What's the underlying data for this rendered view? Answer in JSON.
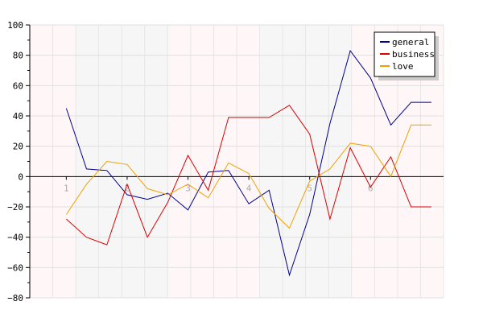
{
  "chart_data": {
    "type": "line",
    "title": "",
    "xlabel": "",
    "ylabel": "",
    "x": [
      1,
      1.333,
      1.667,
      2,
      2.333,
      2.667,
      3,
      3.333,
      3.667,
      4,
      4.333,
      4.667,
      5,
      5.333,
      5.667,
      6,
      6.333,
      6.667,
      7
    ],
    "x_tick_labels": [
      "1",
      "2",
      "3",
      "4",
      "5",
      "6"
    ],
    "x_tick_values": [
      1,
      2,
      3,
      4,
      5,
      6
    ],
    "xlim": [
      1,
      7
    ],
    "ylim": [
      -80,
      100
    ],
    "y_tick_values": [
      -80,
      -60,
      -40,
      -20,
      0,
      20,
      40,
      60,
      80,
      100
    ],
    "y_tick_labels": [
      "−80",
      "−60",
      "−40",
      "−20",
      "0",
      "20",
      "40",
      "60",
      "80",
      "100"
    ],
    "grid": true,
    "legend_position": "top-right",
    "series": [
      {
        "name": "general",
        "color": "#00008b",
        "values": [
          45,
          5,
          4,
          -12,
          -15,
          -11,
          -22,
          3,
          4,
          -18,
          -9,
          -65,
          -25,
          35,
          83,
          65,
          34,
          49,
          49
        ]
      },
      {
        "name": "business",
        "color": "#dd0000",
        "values": [
          -28,
          -40,
          -45,
          -5,
          -40,
          -17,
          14,
          -9,
          39,
          39,
          39,
          47,
          28,
          -28,
          19,
          -7,
          13,
          -20,
          -20
        ]
      },
      {
        "name": "love",
        "color": "#f0a000",
        "values": [
          -25,
          -5,
          10,
          8,
          -8,
          -12,
          -5,
          -14,
          9,
          2,
          -21,
          -34,
          -3,
          5,
          22,
          20,
          0,
          34,
          34
        ]
      }
    ]
  }
}
